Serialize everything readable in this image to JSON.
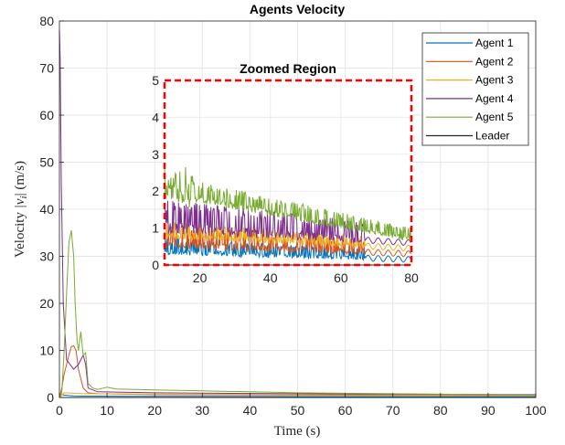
{
  "chart_data": [
    {
      "type": "line",
      "title": "Agents Velocity",
      "xlabel": "Time (s)",
      "ylabel_text": "Velocity",
      "ylabel_math": "|v",
      "ylabel_sub": "i",
      "ylabel_close": "|",
      "ylabel_unit": "(m/s)",
      "xlim": [
        0,
        100
      ],
      "ylim": [
        0,
        80
      ],
      "xticks": [
        "0",
        "10",
        "20",
        "30",
        "40",
        "50",
        "60",
        "70",
        "80",
        "90",
        "100"
      ],
      "yticks": [
        "0",
        "10",
        "20",
        "30",
        "40",
        "50",
        "60",
        "70",
        "80"
      ],
      "grid": true,
      "legend_position": "top-right",
      "series": [
        {
          "name": "Agent 1",
          "color": "#0072BD",
          "x": [
            0,
            0.5,
            1,
            2,
            3,
            5,
            8,
            20,
            50,
            100
          ],
          "y": [
            0,
            0.6,
            0.5,
            0.4,
            0.35,
            0.3,
            0.3,
            0.25,
            0.2,
            0.15
          ]
        },
        {
          "name": "Agent 2",
          "color": "#D95319",
          "x": [
            0,
            0.5,
            1,
            2,
            2.5,
            3,
            3.5,
            4,
            5,
            6,
            8,
            20,
            50,
            100
          ],
          "y": [
            0,
            2,
            5,
            9,
            10.8,
            11,
            10,
            6,
            2,
            1,
            0.8,
            0.6,
            0.5,
            0.4
          ]
        },
        {
          "name": "Agent 3",
          "color": "#EDB120",
          "x": [
            0,
            1,
            3,
            5,
            8,
            20,
            50,
            100
          ],
          "y": [
            0,
            1,
            0.9,
            0.8,
            0.8,
            0.7,
            0.6,
            0.5
          ]
        },
        {
          "name": "Agent 4",
          "color": "#7E2F8E",
          "x": [
            0,
            0.15,
            0.4,
            0.8,
            1.5,
            3,
            4,
            5,
            5.5,
            6,
            8,
            20,
            50,
            100
          ],
          "y": [
            78,
            72,
            45,
            20,
            8,
            6,
            7,
            9,
            7,
            2,
            1.2,
            1,
            0.8,
            0.6
          ]
        },
        {
          "name": "Agent 5",
          "color": "#77AC30",
          "x": [
            0,
            0.5,
            1,
            1.5,
            2,
            2.5,
            3,
            3.3,
            3.7,
            4,
            4.5,
            5,
            5.5,
            6,
            7,
            8,
            10,
            12,
            20,
            30,
            40,
            50,
            60,
            70,
            80,
            90,
            100
          ],
          "y": [
            0,
            1,
            10,
            22,
            33,
            35.5,
            30,
            20,
            12,
            10,
            14,
            9,
            9.5,
            3,
            2,
            1.7,
            2.2,
            1.8,
            1.6,
            1.4,
            1.2,
            1.0,
            0.9,
            0.8,
            0.7,
            0.6,
            0.5
          ]
        },
        {
          "name": "Leader",
          "color": "#262626",
          "x": [
            0,
            100
          ],
          "y": [
            0,
            0
          ]
        }
      ]
    },
    {
      "type": "line",
      "title": "Zoomed Region",
      "xlim": [
        10,
        80
      ],
      "ylim": [
        0,
        5
      ],
      "xticks": [
        "20",
        "40",
        "60",
        "80"
      ],
      "yticks": [
        "0",
        "1",
        "2",
        "3",
        "4",
        "5"
      ],
      "series": [
        {
          "name": "Agent 1",
          "color": "#0072BD",
          "base_start": 0.35,
          "base_end": 0.15,
          "osc": 0.15,
          "osc_end": 67
        },
        {
          "name": "Agent 2",
          "color": "#D95319",
          "base_start": 0.55,
          "base_end": 0.3,
          "osc": 0.2,
          "osc_end": 67
        },
        {
          "name": "Agent 3",
          "color": "#EDB120",
          "base_start": 0.8,
          "base_end": 0.45,
          "osc": 0.15,
          "osc_end": 67
        },
        {
          "name": "Agent 4",
          "color": "#7E2F8E",
          "base_start": 1.0,
          "base_end": 0.6,
          "osc": 0.3,
          "osc_end": 67
        },
        {
          "name": "Agent 5",
          "color": "#77AC30",
          "base_start": 1.95,
          "base_end": 0.7,
          "osc": 0.2,
          "osc_end": 80
        },
        {
          "name": "Leader",
          "color": "#262626",
          "base_start": 0.0,
          "base_end": 0.0,
          "osc": 0,
          "osc_end": 80
        }
      ]
    }
  ]
}
